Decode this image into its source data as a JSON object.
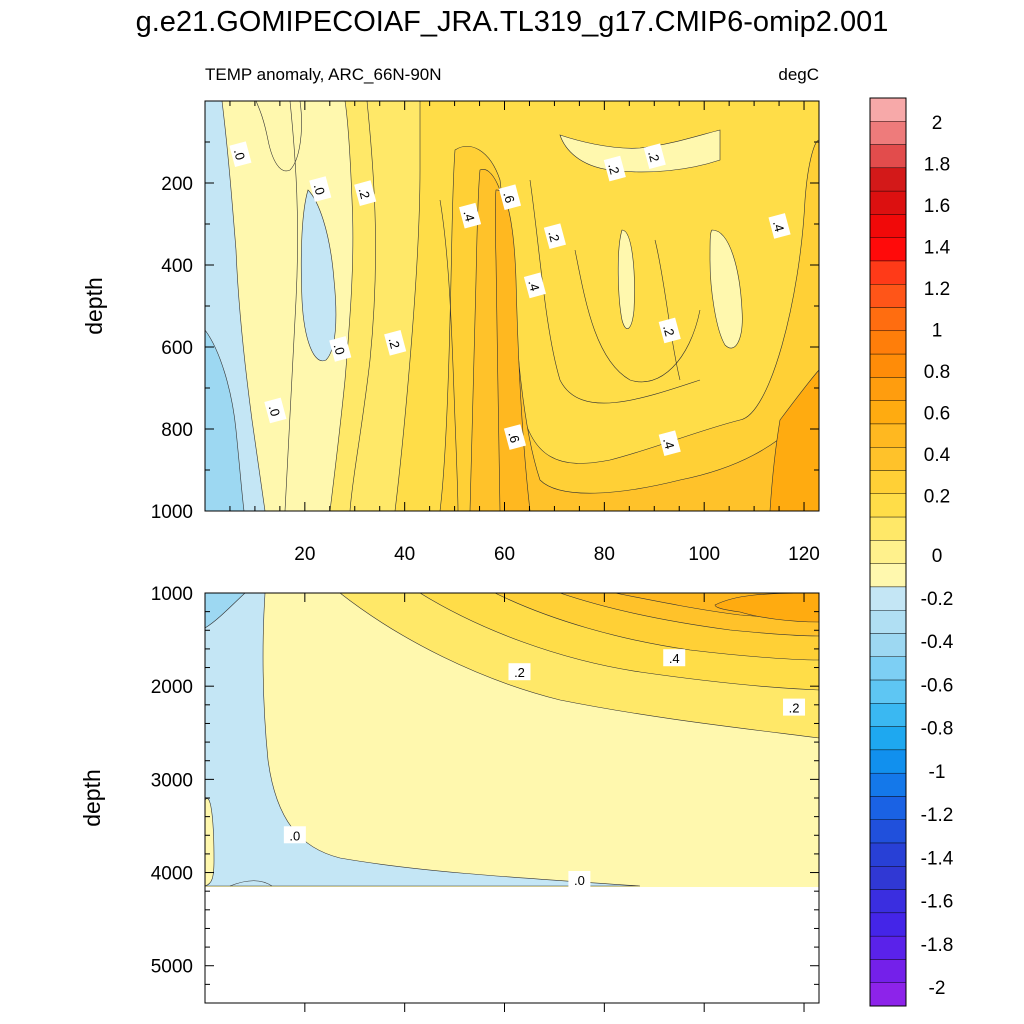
{
  "title": "g.e21.GOMIPECOIAF_JRA.TL319_g17.CMIP6-omip2.001",
  "panel_left_label": "TEMP anomaly, ARC_66N-90N",
  "panel_right_label": "degC",
  "chart_data": [
    {
      "type": "heatmap",
      "name": "upper-panel",
      "xlabel": "",
      "ylabel": "depth",
      "xlim": [
        0,
        123
      ],
      "ylim": [
        1000,
        0
      ],
      "xticks": [
        "20",
        "40",
        "60",
        "80",
        "100",
        "120"
      ],
      "xtick_values": [
        20,
        40,
        60,
        80,
        100,
        120
      ],
      "yticks": [
        "200",
        "400",
        "600",
        "800",
        "1000"
      ],
      "ytick_values": [
        200,
        400,
        600,
        800,
        1000
      ],
      "contour_labels": [
        {
          "text": ".0",
          "x": 7,
          "y": 130
        },
        {
          "text": ".0",
          "x": 23,
          "y": 215
        },
        {
          "text": ".2",
          "x": 32,
          "y": 225
        },
        {
          "text": ".4",
          "x": 53,
          "y": 280
        },
        {
          "text": ".6",
          "x": 61,
          "y": 235
        },
        {
          "text": ".2",
          "x": 70,
          "y": 330
        },
        {
          "text": ".2",
          "x": 82,
          "y": 165
        },
        {
          "text": ".2",
          "x": 90,
          "y": 135
        },
        {
          "text": ".4",
          "x": 115,
          "y": 305
        },
        {
          "text": ".4",
          "x": 66,
          "y": 450
        },
        {
          "text": ".0",
          "x": 27,
          "y": 605
        },
        {
          "text": ".2",
          "x": 38,
          "y": 590
        },
        {
          "text": ".2",
          "x": 93,
          "y": 560
        },
        {
          "text": ".0",
          "x": 14,
          "y": 755
        },
        {
          "text": ".6",
          "x": 62,
          "y": 820
        },
        {
          "text": ".4",
          "x": 93,
          "y": 835
        }
      ]
    },
    {
      "type": "heatmap",
      "name": "lower-panel",
      "xlabel": "",
      "ylabel": "depth",
      "xlim": [
        0,
        123
      ],
      "ylim": [
        5400,
        1000
      ],
      "yticks": [
        "1000",
        "2000",
        "3000",
        "4000",
        "5000"
      ],
      "ytick_values": [
        1000,
        2000,
        3000,
        4000,
        5000
      ],
      "data_bottom_depth": 4120,
      "contour_labels": [
        {
          "text": ".2",
          "x": 63,
          "y": 1850
        },
        {
          "text": ".4",
          "x": 94,
          "y": 1700
        },
        {
          "text": ".2",
          "x": 118,
          "y": 2230
        },
        {
          "text": ".0",
          "x": 18,
          "y": 3600
        },
        {
          "text": ".0",
          "x": 75,
          "y": 4080
        }
      ]
    }
  ],
  "colorbar": {
    "labels": [
      "2",
      "1.8",
      "1.6",
      "1.4",
      "1.2",
      "1",
      "0.8",
      "0.6",
      "0.4",
      "0.2",
      "0",
      "-0.2",
      "-0.4",
      "-0.6",
      "-0.8",
      "-1",
      "-1.2",
      "-1.4",
      "-1.6",
      "-1.8",
      "-2"
    ],
    "label_values": [
      2,
      1.8,
      1.6,
      1.4,
      1.2,
      1,
      0.8,
      0.6,
      0.4,
      0.2,
      0,
      -0.2,
      -0.4,
      -0.6,
      -0.8,
      -1,
      -1.2,
      -1.4,
      -1.6,
      -1.8,
      -2
    ],
    "colors": [
      "#f7a9a9",
      "#ee7b7b",
      "#e24c4c",
      "#d31919",
      "#dc1010",
      "#f10909",
      "#ff0a0a",
      "#ff3a18",
      "#ff5518",
      "#ff6d10",
      "#ff7e0a",
      "#ff8c08",
      "#ff9d0e",
      "#ffab10",
      "#ffb820",
      "#ffc22a",
      "#ffd036",
      "#ffdd48",
      "#ffe868",
      "#fff18c",
      "#fff8ae",
      "#c4e6f5",
      "#b0dff3",
      "#9dd8f2",
      "#7dcff4",
      "#5ec6f3",
      "#3ab8f2",
      "#1ea8f0",
      "#1190ee",
      "#1478ea",
      "#1a62e4",
      "#2050dc",
      "#2840d6",
      "#3038d4",
      "#3a2ee0",
      "#4425e8",
      "#5a22ea",
      "#7420ea",
      "#8d23ea"
    ]
  },
  "colors": {
    "neg_strong": "#9dd8f2",
    "neg_weak": "#c4e6f5",
    "l0": "#fff8ae",
    "l1": "#ffe868",
    "l2": "#ffdd48",
    "l3": "#ffd036",
    "l4": "#ffc22a",
    "l5": "#ffb820",
    "l6": "#ffab10"
  }
}
